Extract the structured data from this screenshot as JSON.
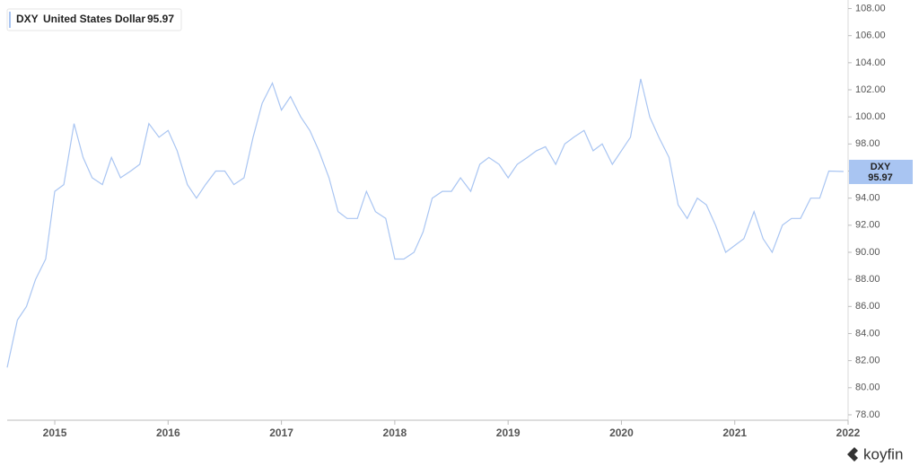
{
  "chart_data": {
    "type": "line",
    "description": "United States Dollar",
    "brand": "koyfin",
    "x": [
      2014.58,
      2014.67,
      2014.75,
      2014.83,
      2014.92,
      2015.0,
      2015.08,
      2015.17,
      2015.25,
      2015.33,
      2015.42,
      2015.5,
      2015.58,
      2015.67,
      2015.75,
      2015.83,
      2015.92,
      2016.0,
      2016.08,
      2016.17,
      2016.25,
      2016.33,
      2016.42,
      2016.5,
      2016.58,
      2016.67,
      2016.75,
      2016.83,
      2016.92,
      2017.0,
      2017.08,
      2017.17,
      2017.25,
      2017.33,
      2017.42,
      2017.5,
      2017.58,
      2017.67,
      2017.75,
      2017.83,
      2017.92,
      2018.0,
      2018.08,
      2018.17,
      2018.25,
      2018.33,
      2018.42,
      2018.5,
      2018.58,
      2018.67,
      2018.75,
      2018.83,
      2018.92,
      2019.0,
      2019.08,
      2019.17,
      2019.25,
      2019.33,
      2019.42,
      2019.5,
      2019.58,
      2019.67,
      2019.75,
      2019.83,
      2019.92,
      2020.0,
      2020.08,
      2020.17,
      2020.25,
      2020.33,
      2020.42,
      2020.5,
      2020.58,
      2020.67,
      2020.75,
      2020.83,
      2020.92,
      2021.0,
      2021.08,
      2021.17,
      2021.25,
      2021.33,
      2021.42,
      2021.5,
      2021.58,
      2021.67,
      2021.75,
      2021.83,
      2021.96
    ],
    "series": [
      {
        "name": "DXY",
        "color": "#a9c5f2",
        "values": [
          81.5,
          85,
          86,
          88,
          89.5,
          94.5,
          95,
          99.5,
          97,
          95.5,
          95,
          97,
          95.5,
          96,
          96.5,
          99.5,
          98.5,
          99,
          97.5,
          95,
          94,
          95,
          96,
          96,
          95,
          95.5,
          98.5,
          101,
          102.5,
          100.5,
          101.5,
          100,
          99,
          97.5,
          95.5,
          93,
          92.5,
          92.5,
          94.5,
          93,
          92.5,
          89.5,
          89.5,
          90,
          91.5,
          94,
          94.5,
          94.5,
          95.5,
          94.5,
          96.5,
          97,
          96.5,
          95.5,
          96.5,
          97,
          97.5,
          97.8,
          96.5,
          98,
          98.5,
          99,
          97.5,
          98,
          96.5,
          97.5,
          98.5,
          102.8,
          100,
          98.5,
          97,
          93.5,
          92.5,
          94,
          93.5,
          92,
          90,
          90.5,
          91,
          93,
          91,
          90,
          92,
          92.5,
          92.5,
          94,
          94,
          96,
          95.97
        ]
      }
    ],
    "xlim": [
      2014.58,
      2022.0
    ],
    "xticks": [
      2015,
      2016,
      2017,
      2018,
      2019,
      2020,
      2021,
      2022
    ],
    "ylim": [
      77.6,
      108.3
    ],
    "yticks": [
      {
        "value": 78,
        "label": "78.00"
      },
      {
        "value": 80,
        "label": "80.00"
      },
      {
        "value": 82,
        "label": "82.00"
      },
      {
        "value": 84,
        "label": "84.00"
      },
      {
        "value": 86,
        "label": "86.00"
      },
      {
        "value": 88,
        "label": "88.00"
      },
      {
        "value": 90,
        "label": "90.00"
      },
      {
        "value": 92,
        "label": "92.00"
      },
      {
        "value": 94,
        "label": "94.00"
      },
      {
        "value": 96,
        "label": "96.00"
      },
      {
        "value": 98,
        "label": "98.00"
      },
      {
        "value": 100,
        "label": "100.00"
      },
      {
        "value": 102,
        "label": "102.00"
      },
      {
        "value": 104,
        "label": "104.00"
      },
      {
        "value": 106,
        "label": "106.00"
      },
      {
        "value": 108,
        "label": "108.00"
      }
    ]
  }
}
